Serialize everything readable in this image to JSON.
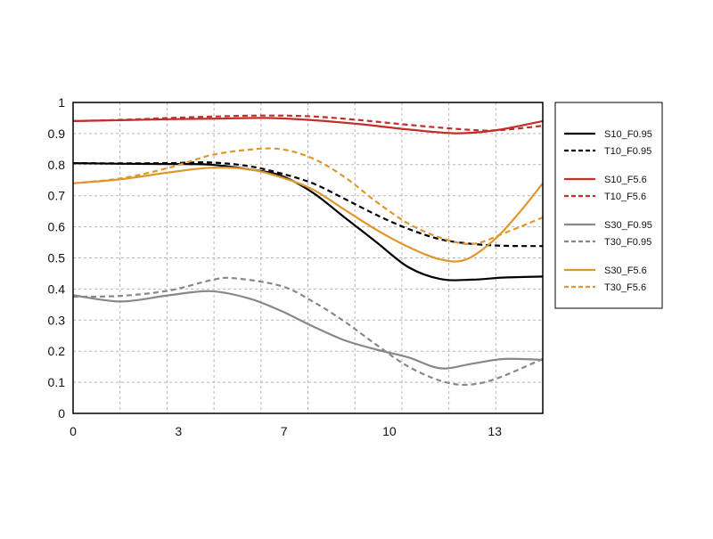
{
  "chart_data": {
    "type": "line",
    "title": "",
    "xlabel": "",
    "ylabel": "",
    "xlim": [
      0,
      14.7
    ],
    "ylim": [
      0,
      1
    ],
    "x_ticks": [
      {
        "value": 0,
        "label": "0"
      },
      {
        "value": 3.3,
        "label": "3"
      },
      {
        "value": 6.6,
        "label": "7"
      },
      {
        "value": 9.9,
        "label": "10"
      },
      {
        "value": 13.2,
        "label": "13"
      }
    ],
    "x_grid": [
      0,
      1.47,
      2.94,
      4.41,
      5.88,
      7.35,
      8.82,
      10.29,
      11.76,
      13.23,
      14.7
    ],
    "y_ticks": [
      {
        "value": 0,
        "label": "0"
      },
      {
        "value": 0.1,
        "label": "0.1"
      },
      {
        "value": 0.2,
        "label": "0.2"
      },
      {
        "value": 0.3,
        "label": "0.3"
      },
      {
        "value": 0.4,
        "label": "0.4"
      },
      {
        "value": 0.5,
        "label": "0.5"
      },
      {
        "value": 0.6,
        "label": "0.6"
      },
      {
        "value": 0.7,
        "label": "0.7"
      },
      {
        "value": 0.8,
        "label": "0.8"
      },
      {
        "value": 0.9,
        "label": "0.9"
      },
      {
        "value": 1,
        "label": "1"
      }
    ],
    "grid": true,
    "legend_position": "right",
    "series": [
      {
        "name": "S10_F0.95",
        "color": "#000000",
        "dash": false,
        "group": 0,
        "points": [
          [
            0,
            0.805
          ],
          [
            1.5,
            0.803
          ],
          [
            3,
            0.802
          ],
          [
            4.3,
            0.8
          ],
          [
            5.5,
            0.785
          ],
          [
            6.5,
            0.765
          ],
          [
            7.5,
            0.71
          ],
          [
            8.5,
            0.63
          ],
          [
            9.5,
            0.55
          ],
          [
            10.5,
            0.47
          ],
          [
            11.5,
            0.432
          ],
          [
            12.5,
            0.43
          ],
          [
            13.5,
            0.437
          ],
          [
            14.7,
            0.44
          ]
        ]
      },
      {
        "name": "T10_F0.95",
        "color": "#000000",
        "dash": true,
        "group": 0,
        "points": [
          [
            0,
            0.805
          ],
          [
            1.5,
            0.804
          ],
          [
            3,
            0.805
          ],
          [
            4.3,
            0.807
          ],
          [
            5.5,
            0.795
          ],
          [
            6.5,
            0.772
          ],
          [
            7.5,
            0.74
          ],
          [
            8.5,
            0.69
          ],
          [
            9.5,
            0.638
          ],
          [
            10.5,
            0.593
          ],
          [
            11.5,
            0.56
          ],
          [
            12.5,
            0.545
          ],
          [
            13.5,
            0.539
          ],
          [
            14.7,
            0.538
          ]
        ]
      },
      {
        "name": "S10_F5.6",
        "color": "#c0302a",
        "dash": false,
        "group": 1,
        "points": [
          [
            0,
            0.94
          ],
          [
            1.5,
            0.943
          ],
          [
            3,
            0.946
          ],
          [
            4.5,
            0.948
          ],
          [
            6,
            0.95
          ],
          [
            7.5,
            0.943
          ],
          [
            9,
            0.93
          ],
          [
            10.5,
            0.913
          ],
          [
            12,
            0.901
          ],
          [
            13.2,
            0.91
          ],
          [
            14.7,
            0.94
          ]
        ]
      },
      {
        "name": "T10_F5.6",
        "color": "#c0302a",
        "dash": true,
        "group": 1,
        "points": [
          [
            0,
            0.94
          ],
          [
            1.5,
            0.944
          ],
          [
            3,
            0.95
          ],
          [
            4.5,
            0.955
          ],
          [
            6,
            0.958
          ],
          [
            7.5,
            0.955
          ],
          [
            9,
            0.943
          ],
          [
            10.5,
            0.928
          ],
          [
            12,
            0.915
          ],
          [
            13.2,
            0.91
          ],
          [
            14.7,
            0.925
          ]
        ]
      },
      {
        "name": "S30_F0.95",
        "color": "#888888",
        "dash": false,
        "group": 2,
        "points": [
          [
            0,
            0.38
          ],
          [
            1.5,
            0.36
          ],
          [
            3,
            0.38
          ],
          [
            4.3,
            0.393
          ],
          [
            5.5,
            0.37
          ],
          [
            6.5,
            0.33
          ],
          [
            7.5,
            0.28
          ],
          [
            8.5,
            0.235
          ],
          [
            9.5,
            0.205
          ],
          [
            10.5,
            0.18
          ],
          [
            11.5,
            0.145
          ],
          [
            12.5,
            0.16
          ],
          [
            13.5,
            0.175
          ],
          [
            14.7,
            0.172
          ]
        ]
      },
      {
        "name": "T30_F0.95",
        "color": "#888888",
        "dash": true,
        "group": 2,
        "points": [
          [
            0,
            0.375
          ],
          [
            1.5,
            0.378
          ],
          [
            3,
            0.395
          ],
          [
            4.3,
            0.428
          ],
          [
            5,
            0.435
          ],
          [
            6.5,
            0.41
          ],
          [
            7.5,
            0.36
          ],
          [
            8.5,
            0.295
          ],
          [
            9.5,
            0.22
          ],
          [
            10.5,
            0.15
          ],
          [
            11.5,
            0.105
          ],
          [
            12.3,
            0.092
          ],
          [
            13.2,
            0.11
          ],
          [
            14.7,
            0.175
          ]
        ]
      },
      {
        "name": "S30_F5.6",
        "color": "#e0962e",
        "dash": false,
        "group": 3,
        "points": [
          [
            0,
            0.74
          ],
          [
            1.5,
            0.753
          ],
          [
            3,
            0.775
          ],
          [
            4.3,
            0.79
          ],
          [
            5.5,
            0.785
          ],
          [
            6.5,
            0.76
          ],
          [
            7.5,
            0.72
          ],
          [
            8.5,
            0.655
          ],
          [
            9.5,
            0.59
          ],
          [
            10.5,
            0.535
          ],
          [
            11.5,
            0.495
          ],
          [
            12.3,
            0.495
          ],
          [
            13.2,
            0.56
          ],
          [
            14,
            0.65
          ],
          [
            14.7,
            0.74
          ]
        ]
      },
      {
        "name": "T30_F5.6",
        "color": "#e0962e",
        "dash": true,
        "group": 3,
        "points": [
          [
            0,
            0.74
          ],
          [
            1.5,
            0.756
          ],
          [
            3,
            0.79
          ],
          [
            4.3,
            0.83
          ],
          [
            5.5,
            0.848
          ],
          [
            6.5,
            0.85
          ],
          [
            7.5,
            0.82
          ],
          [
            8.5,
            0.76
          ],
          [
            9.5,
            0.68
          ],
          [
            10.5,
            0.61
          ],
          [
            11.5,
            0.565
          ],
          [
            12.5,
            0.545
          ],
          [
            13.5,
            0.58
          ],
          [
            14.7,
            0.63
          ]
        ]
      }
    ]
  }
}
